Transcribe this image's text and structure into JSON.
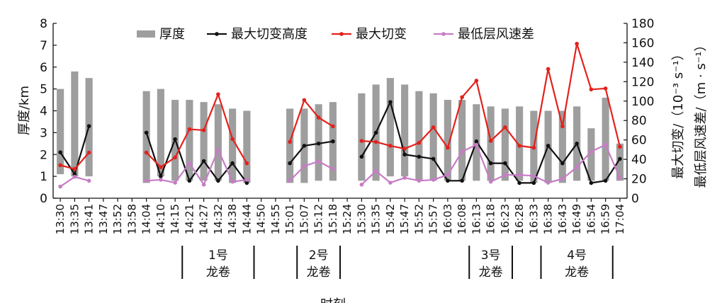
{
  "chart_data": {
    "type": "bar",
    "categories": [
      "13:30",
      "13:35",
      "13:41",
      "13:47",
      "13:52",
      "13:58",
      "14:04",
      "14:10",
      "14:15",
      "14:21",
      "14:27",
      "14:32",
      "14:38",
      "14:44",
      "14:50",
      "14:55",
      "15:01",
      "15:07",
      "15:12",
      "15:18",
      "15:24",
      "15:30",
      "15:35",
      "15:42",
      "15:47",
      "15:52",
      "15:57",
      "16:03",
      "16:08",
      "16:13",
      "16:18",
      "16:23",
      "16:28",
      "16:33",
      "16:38",
      "16:43",
      "16:49",
      "16:54",
      "16:59",
      "17:04"
    ],
    "xlabel": "时刻",
    "ylabel_left": "厚度/km",
    "ylabel_right_1": "最大切变/（10⁻³ s⁻¹）",
    "ylabel_right_2": "最低层风速差/（m · s⁻¹）",
    "ylim_left": [
      0,
      8
    ],
    "ylim_right": [
      0,
      180
    ],
    "yticks_left": [
      "0",
      "1",
      "2",
      "3",
      "4",
      "5",
      "6",
      "7",
      "8"
    ],
    "yticks_right": [
      "0",
      "20",
      "40",
      "60",
      "80",
      "100",
      "120",
      "140",
      "160",
      "180"
    ],
    "legend_position": "top",
    "thickness_bars": {
      "name": "厚度",
      "color": "#9e9e9e",
      "top": [
        5.0,
        5.8,
        5.5,
        null,
        null,
        null,
        4.9,
        5.0,
        4.5,
        4.5,
        4.4,
        4.3,
        4.1,
        4.0,
        null,
        null,
        4.1,
        4.1,
        4.3,
        4.4,
        null,
        4.8,
        5.2,
        5.5,
        5.2,
        4.9,
        4.8,
        4.5,
        4.5,
        4.3,
        4.2,
        4.1,
        4.2,
        4.0,
        4.0,
        4.0,
        4.2,
        3.2,
        4.6,
        2.5
      ],
      "bottom": [
        1.1,
        1.0,
        1.0,
        null,
        null,
        null,
        0.7,
        1.0,
        0.8,
        0.8,
        0.8,
        0.8,
        0.7,
        0.7,
        null,
        null,
        0.7,
        0.7,
        0.8,
        0.8,
        null,
        0.8,
        0.8,
        1.0,
        1.0,
        0.8,
        0.8,
        0.8,
        0.8,
        0.8,
        0.8,
        0.8,
        0.8,
        0.7,
        0.7,
        0.7,
        0.8,
        0.8,
        0.8,
        0.8
      ]
    },
    "series": [
      {
        "name": "最大切变高度",
        "color": "#111111",
        "axis": "left",
        "values": [
          2.1,
          1.1,
          3.3,
          null,
          null,
          null,
          3.0,
          1.0,
          2.7,
          0.8,
          1.7,
          0.8,
          1.6,
          0.7,
          null,
          null,
          1.6,
          2.4,
          2.5,
          2.6,
          null,
          1.9,
          3.0,
          4.4,
          2.0,
          1.9,
          1.8,
          0.8,
          0.8,
          2.6,
          1.6,
          1.6,
          0.7,
          0.7,
          2.4,
          1.6,
          2.5,
          0.7,
          0.8,
          1.8
        ]
      },
      {
        "name": "最大切变",
        "color": "#e3211c",
        "axis": "right",
        "values": [
          34,
          30,
          47,
          null,
          null,
          null,
          47,
          32,
          42,
          71,
          70,
          107,
          61,
          36,
          null,
          null,
          58,
          101,
          83,
          74,
          null,
          59,
          58,
          54,
          51,
          57,
          73,
          52,
          104,
          121,
          59,
          73,
          54,
          52,
          133,
          74,
          159,
          112,
          113,
          53
        ]
      },
      {
        "name": "最低层风速差",
        "color": "#c77cc6",
        "axis": "right",
        "values": [
          12,
          22,
          18,
          null,
          null,
          null,
          18,
          19,
          16,
          36,
          14,
          50,
          17,
          19,
          null,
          null,
          18,
          33,
          38,
          30,
          null,
          14,
          28,
          16,
          21,
          18,
          19,
          24,
          48,
          55,
          17,
          24,
          24,
          23,
          16,
          20,
          32,
          48,
          55,
          21
        ]
      }
    ],
    "groups": [
      {
        "label_line1": "1号",
        "label_line2": "龙卷",
        "from": "14:21",
        "to": "14:44"
      },
      {
        "label_line1": "2号",
        "label_line2": "龙卷",
        "from": "15:07",
        "to": "15:18"
      },
      {
        "label_line1": "3号",
        "label_line2": "龙卷",
        "from": "16:13",
        "to": "16:23"
      },
      {
        "label_line1": "4号",
        "label_line2": "龙卷",
        "from": "16:38",
        "to": "16:59"
      }
    ]
  }
}
